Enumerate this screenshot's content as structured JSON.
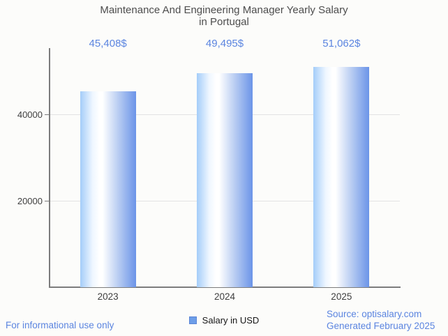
{
  "title": {
    "line1": "Maintenance And Engineering Manager Yearly Salary",
    "line2": "in Portugal"
  },
  "chart_data": {
    "type": "bar",
    "title": "Maintenance And Engineering Manager Yearly Salary in Portugal",
    "categories": [
      "2023",
      "2024",
      "2025"
    ],
    "series": [
      {
        "name": "Salary in USD",
        "values": [
          45408,
          49495,
          51062
        ]
      }
    ],
    "value_labels": [
      "45,408$",
      "49,495$",
      "51,062$"
    ],
    "xlabel": "",
    "ylabel": "",
    "ylim": [
      0,
      55350
    ],
    "yticks": [
      {
        "value": 20000,
        "label": "20000"
      },
      {
        "value": 40000,
        "label": "40000"
      }
    ],
    "grid": "horizontal",
    "legend_position": "bottom"
  },
  "legend": {
    "label": "Salary in USD"
  },
  "footer": {
    "left": "For informational use only",
    "source": "Source: optisalary.com",
    "generated": "Generated February 2025"
  },
  "colors": {
    "accent_blue": "#5b85e0",
    "title_text": "#4d4d4d",
    "axis": "#7c7c7c",
    "gridline": "#e3e3e3",
    "tick_text": "#3f3f3f",
    "bar_gradient_left": "#a4cdf9",
    "bar_gradient_highlight": "#ffffff",
    "bar_gradient_right": "#6b94e8",
    "legend_swatch_fill": "#6d9ee8",
    "legend_swatch_border": "#5b85d6",
    "background": "#fcfcfa"
  }
}
